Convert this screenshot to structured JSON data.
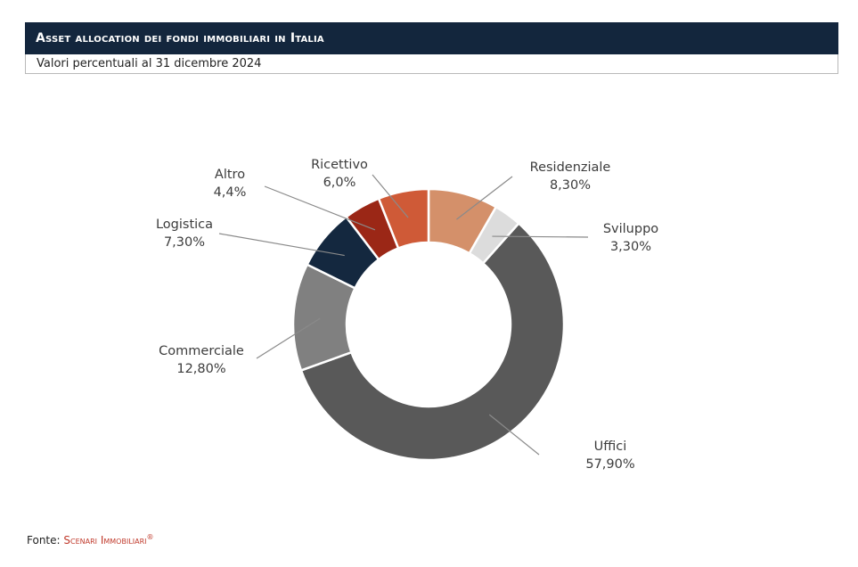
{
  "header": {
    "title": "Asset allocation dei fondi immobiliari in Italia",
    "subtitle": "Valori percentuali al 31 dicembre 2024"
  },
  "footer": {
    "source_prefix": "Fonte:",
    "source_name": "Scenari Immobiliari",
    "registered_mark": "®"
  },
  "chart_data": {
    "type": "pie",
    "variant": "donut",
    "title": "Asset allocation dei fondi immobiliari in Italia",
    "subtitle": "Valori percentuali al 31 dicembre 2024",
    "categories": [
      "Residenziale",
      "Sviluppo",
      "Uffici",
      "Commerciale",
      "Logistica",
      "Altro",
      "Ricettivo"
    ],
    "values": [
      8.3,
      3.3,
      57.9,
      12.8,
      7.3,
      4.4,
      6.0
    ],
    "value_labels": [
      "8,30%",
      "3,30%",
      "57,90%",
      "12,80%",
      "7,30%",
      "4,4%",
      "6,0%"
    ],
    "colors": [
      "#d4906a",
      "#dcdcdc",
      "#595959",
      "#808080",
      "#14283f",
      "#9b2716",
      "#cf5a37"
    ],
    "legend": "none"
  }
}
